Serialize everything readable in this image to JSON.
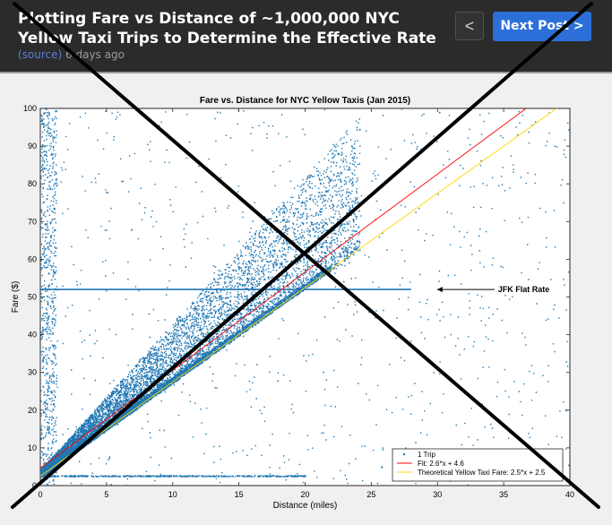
{
  "post": {
    "title": "Plotting Fare vs Distance of ~1,000,000 NYC Yellow Taxi Trips to Determine the Effective Rate",
    "source_label": "(source)",
    "age": "6 days ago"
  },
  "nav": {
    "prev_label": "<",
    "next_label": "Next Post >"
  },
  "chart_data": {
    "type": "scatter",
    "title": "Fare vs. Distance for NYC Yellow Taxis (Jan 2015)",
    "xlabel": "Distance (miles)",
    "ylabel": "Fare ($)",
    "xlim": [
      0,
      40
    ],
    "ylim": [
      0,
      100
    ],
    "xticks": [
      0,
      5,
      10,
      15,
      20,
      25,
      30,
      35,
      40
    ],
    "yticks": [
      0,
      10,
      20,
      30,
      40,
      50,
      60,
      70,
      80,
      90,
      100
    ],
    "grid": false,
    "legend_position": "bottom-right",
    "series": [
      {
        "name": "1 Trip",
        "kind": "scatter",
        "color": "#1f77b4"
      },
      {
        "name": "Fit: 2.6*x + 4.6",
        "kind": "line",
        "slope": 2.6,
        "intercept": 4.6,
        "color": "#ff0000"
      },
      {
        "name": "Theoretical Yellow Taxi Fare: 2.5*x + 2.5",
        "kind": "line",
        "slope": 2.5,
        "intercept": 2.5,
        "color": "#ffd700"
      }
    ],
    "flat_rate_line": {
      "y": 52,
      "x_start": 0,
      "x_end": 28
    },
    "annotations": [
      {
        "text": "JFK Flat Rate",
        "x": 32,
        "y": 52
      }
    ]
  },
  "overlay": {
    "icon": "x-cross-icon",
    "color": "#000000"
  }
}
